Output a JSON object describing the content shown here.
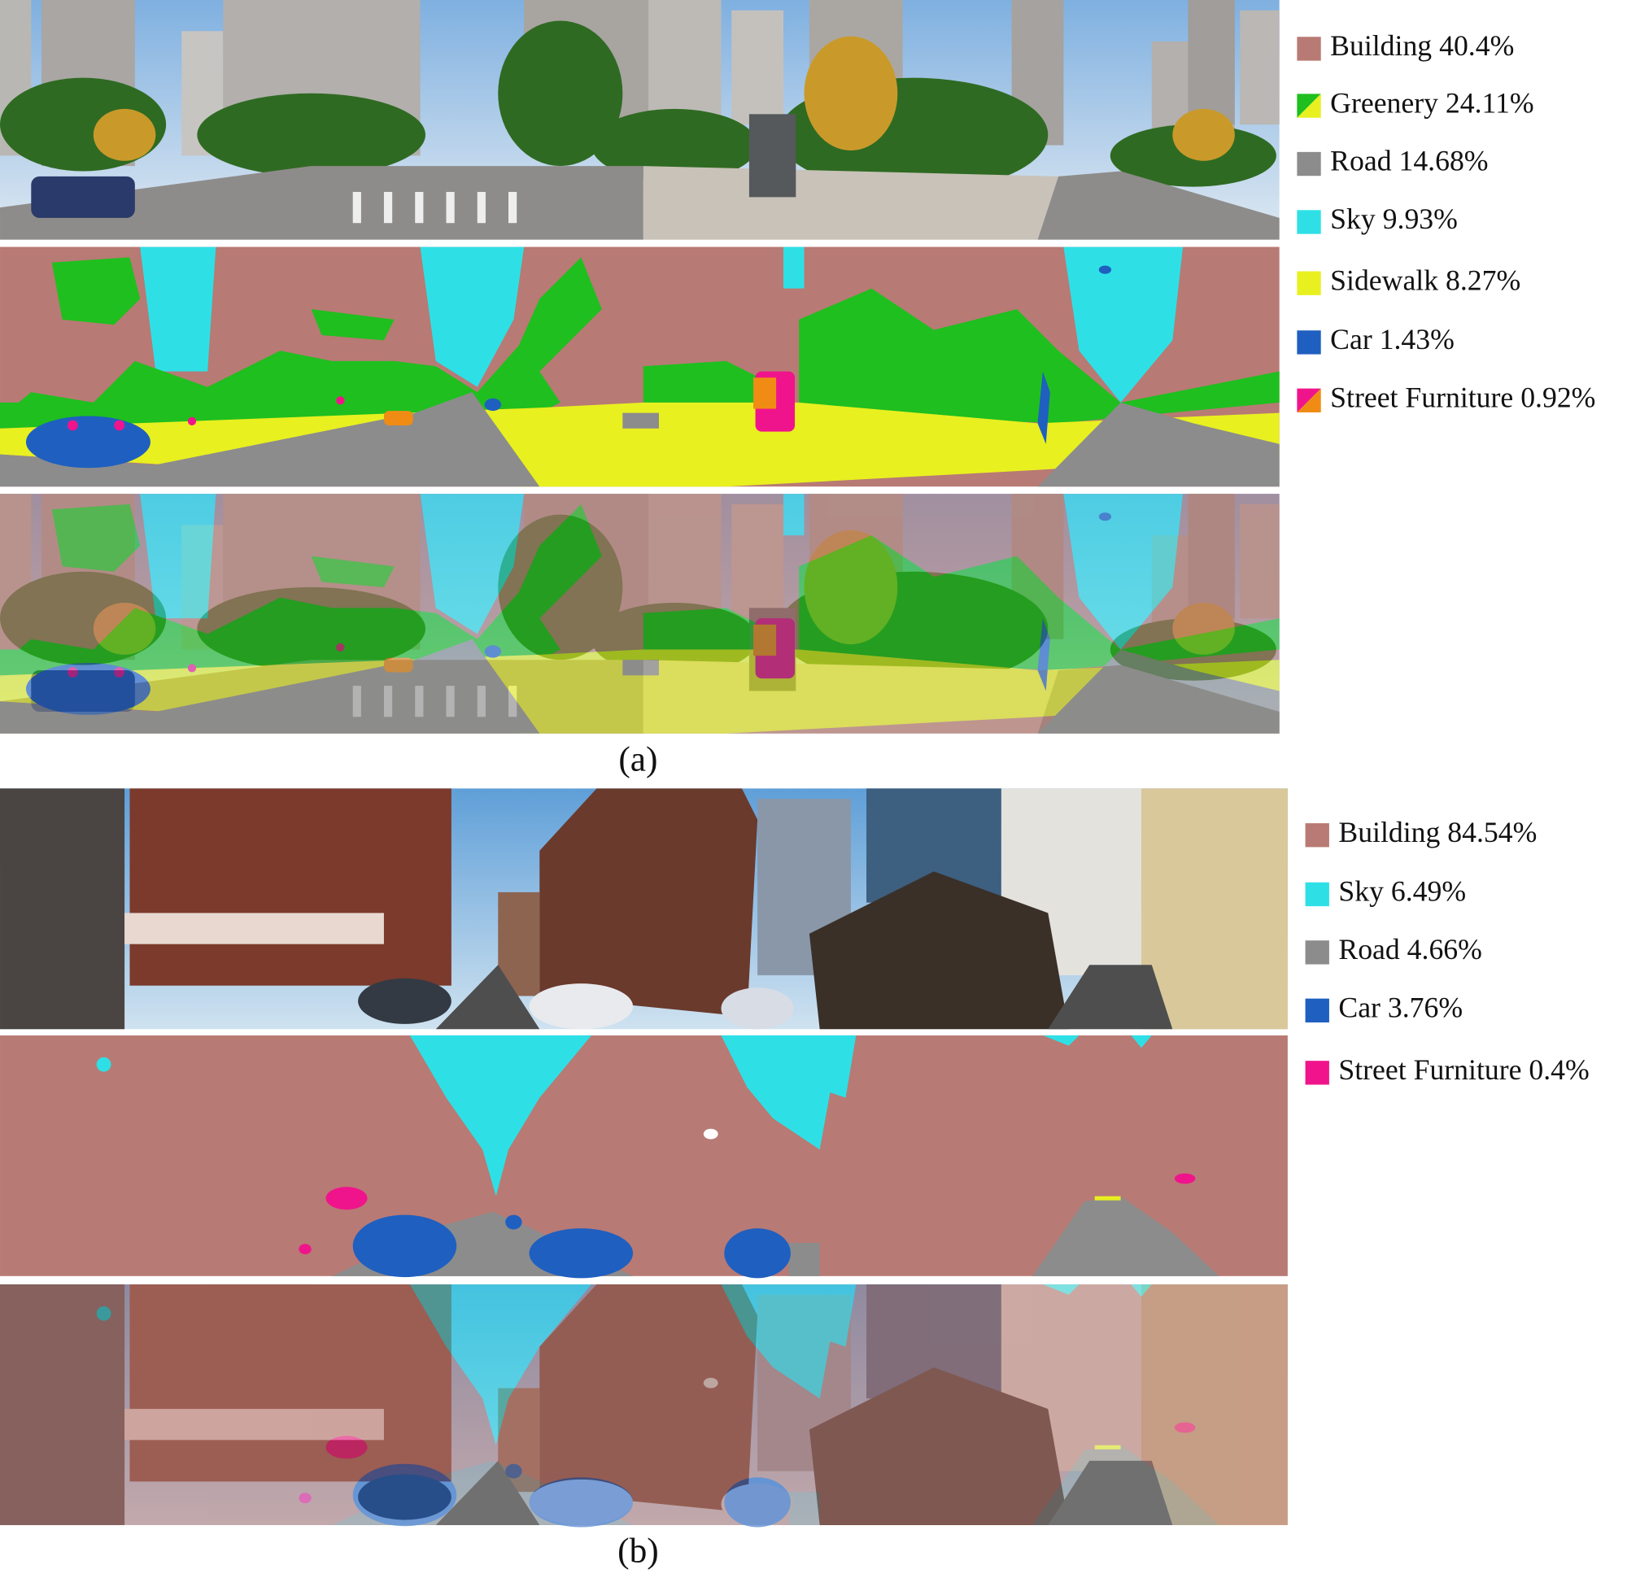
{
  "panels": [
    {
      "caption": "(a)",
      "legend": [
        {
          "label": "Building 40.4%",
          "colors": [
            "#b87a74"
          ]
        },
        {
          "label": "Greenery 24.11%",
          "colors": [
            "#1fbf1f",
            "#e8f020"
          ]
        },
        {
          "label": "Road 14.68%",
          "colors": [
            "#8c8c8c"
          ]
        },
        {
          "label": "Sky 9.93%",
          "colors": [
            "#2ee0e6"
          ]
        },
        {
          "label": "Sidewalk 8.27%",
          "colors": [
            "#e8f020"
          ]
        },
        {
          "label": "Car 1.43%",
          "colors": [
            "#1f5fc0"
          ]
        },
        {
          "label": "Street Furniture 0.92%",
          "colors": [
            "#f0148c",
            "#f08c14"
          ]
        }
      ]
    },
    {
      "caption": "(b)",
      "legend": [
        {
          "label": "Building 84.54%",
          "colors": [
            "#b87a74"
          ]
        },
        {
          "label": "Sky 6.49%",
          "colors": [
            "#2ee0e6"
          ]
        },
        {
          "label": "Road 4.66%",
          "colors": [
            "#8c8c8c"
          ]
        },
        {
          "label": "Car 3.76%",
          "colors": [
            "#1f5fc0"
          ]
        },
        {
          "label": "Street Furniture 0.4%",
          "colors": [
            "#f0148c"
          ]
        }
      ]
    }
  ]
}
